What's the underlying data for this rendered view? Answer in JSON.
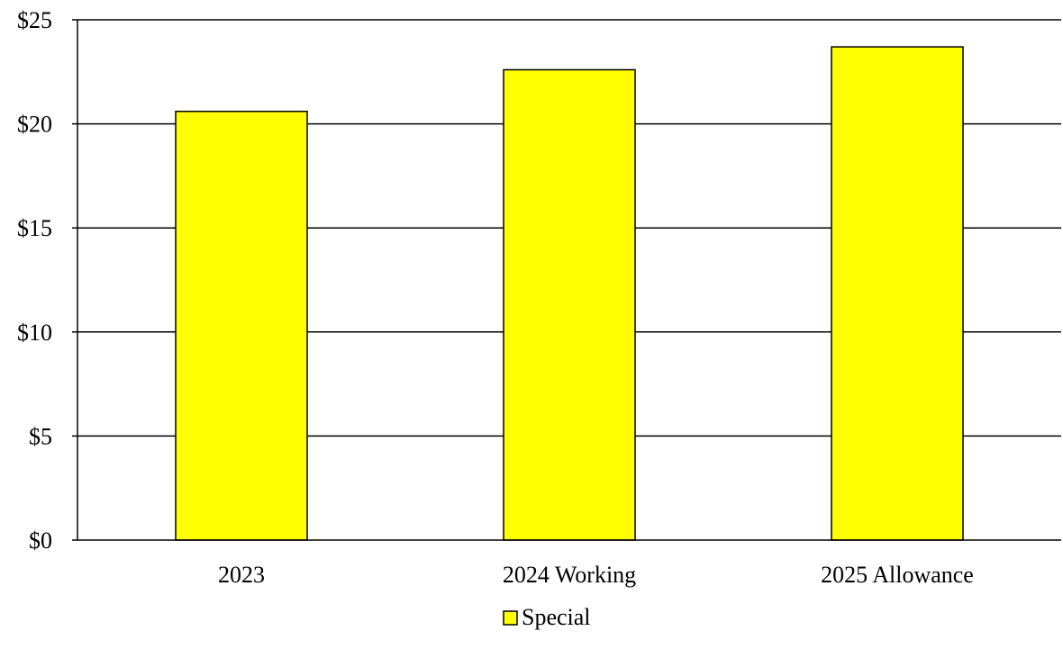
{
  "chart_data": {
    "type": "bar",
    "categories": [
      "2023",
      "2024 Working",
      "2025 Allowance"
    ],
    "series": [
      {
        "name": "Special",
        "values": [
          20.6,
          22.6,
          23.7
        ],
        "color": "#FFFF00"
      }
    ],
    "title": "",
    "xlabel": "",
    "ylabel": "",
    "ylim": [
      0,
      25
    ],
    "yticks": [
      0,
      5,
      10,
      15,
      20,
      25
    ],
    "ytick_labels": [
      "$0",
      "$5",
      "$10",
      "$15",
      "$20",
      "$25"
    ],
    "grid": true,
    "legend_position": "bottom-center"
  }
}
